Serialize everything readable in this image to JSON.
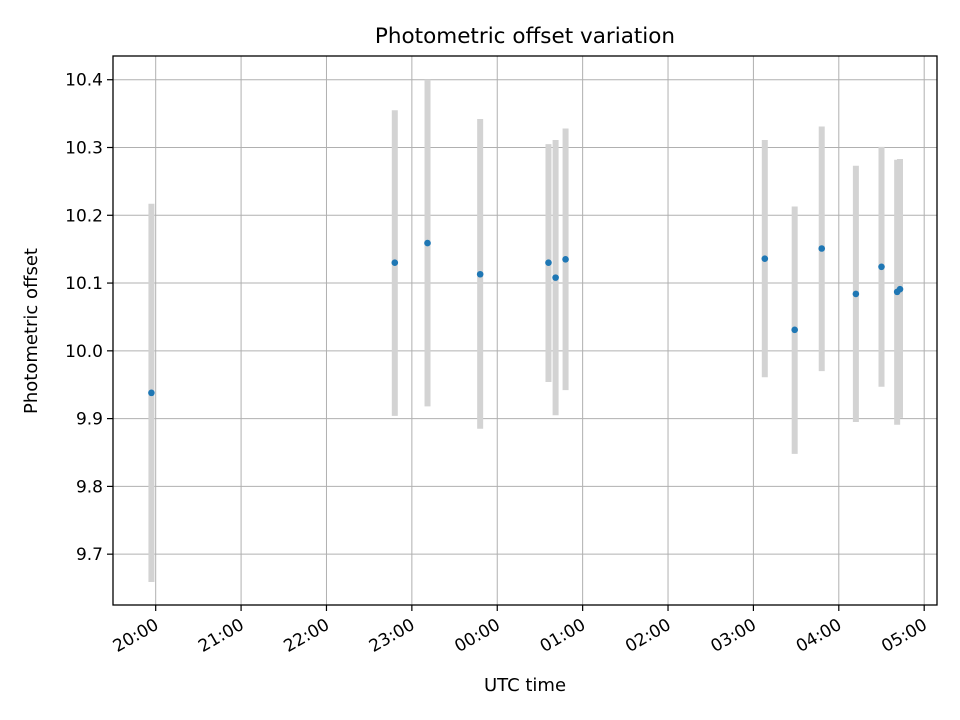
{
  "chart_data": {
    "type": "scatter",
    "title": "Photometric offset variation",
    "xlabel": "UTC time",
    "ylabel": "Photometric offset",
    "x_axis": {
      "kind": "time",
      "range": [
        "19:30",
        "05:09"
      ],
      "ticks": [
        "20:00",
        "21:00",
        "22:00",
        "23:00",
        "00:00",
        "01:00",
        "02:00",
        "03:00",
        "04:00",
        "05:00"
      ]
    },
    "y_axis": {
      "range": [
        9.625,
        10.435
      ],
      "ticks": [
        "9.7",
        "9.8",
        "9.9",
        "10.0",
        "10.1",
        "10.2",
        "10.3",
        "10.4"
      ]
    },
    "grid": true,
    "marker_color": "#1f77b4",
    "errorbar_color": "#d3d3d3",
    "points": [
      {
        "time": "19:57",
        "y": 9.938,
        "low": 9.659,
        "high": 10.217
      },
      {
        "time": "22:48",
        "y": 10.13,
        "low": 9.904,
        "high": 10.355
      },
      {
        "time": "23:11",
        "y": 10.159,
        "low": 9.918,
        "high": 10.4
      },
      {
        "time": "23:48",
        "y": 10.113,
        "low": 9.885,
        "high": 10.342
      },
      {
        "time": "00:36",
        "y": 10.13,
        "low": 9.954,
        "high": 10.305
      },
      {
        "time": "00:41",
        "y": 10.108,
        "low": 9.905,
        "high": 10.311
      },
      {
        "time": "00:48",
        "y": 10.135,
        "low": 9.942,
        "high": 10.328
      },
      {
        "time": "03:08",
        "y": 10.136,
        "low": 9.961,
        "high": 10.311
      },
      {
        "time": "03:29",
        "y": 10.031,
        "low": 9.848,
        "high": 10.213
      },
      {
        "time": "03:48",
        "y": 10.151,
        "low": 9.97,
        "high": 10.331
      },
      {
        "time": "04:12",
        "y": 10.084,
        "low": 9.895,
        "high": 10.273
      },
      {
        "time": "04:30",
        "y": 10.124,
        "low": 9.947,
        "high": 10.301
      },
      {
        "time": "04:41",
        "y": 10.087,
        "low": 9.891,
        "high": 10.282
      },
      {
        "time": "04:43",
        "y": 10.091,
        "low": 9.901,
        "high": 10.283
      }
    ]
  }
}
